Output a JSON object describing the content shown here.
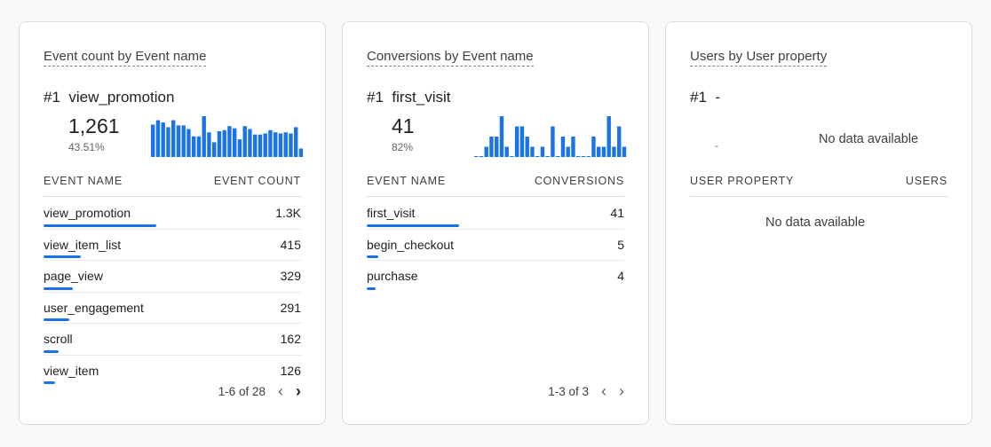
{
  "cards": [
    {
      "title": "Event count by Event name",
      "rank": "#1",
      "top_name": "view_promotion",
      "top_value": "1,261",
      "top_pct": "43.51%",
      "sparkline": [
        88,
        100,
        94,
        81,
        100,
        86,
        86,
        76,
        56,
        56,
        111,
        67,
        40,
        70,
        73,
        84,
        78,
        48,
        84,
        76,
        61,
        61,
        64,
        73,
        67,
        64,
        67,
        64,
        81,
        23
      ],
      "col_name": "EVENT NAME",
      "col_value": "EVENT COUNT",
      "rows": [
        {
          "name": "view_promotion",
          "value": "1.3K",
          "frac": 1.0
        },
        {
          "name": "view_item_list",
          "value": "415",
          "frac": 0.33
        },
        {
          "name": "page_view",
          "value": "329",
          "frac": 0.26
        },
        {
          "name": "user_engagement",
          "value": "291",
          "frac": 0.23
        },
        {
          "name": "scroll",
          "value": "162",
          "frac": 0.13
        },
        {
          "name": "view_item",
          "value": "126",
          "frac": 0.1
        }
      ],
      "pager": "1-6 of 28",
      "prev_enabled": false,
      "next_enabled": true
    },
    {
      "title": "Conversions by Event name",
      "rank": "#1",
      "top_name": "first_visit",
      "top_value": "41",
      "top_pct": "82%",
      "sparkline": [
        0,
        0,
        1,
        2,
        2,
        4,
        1,
        0,
        3,
        3,
        2,
        1,
        0,
        1,
        0,
        3,
        0,
        2,
        1,
        2,
        0,
        0,
        0,
        2,
        1,
        1,
        4,
        1,
        3,
        1
      ],
      "col_name": "EVENT NAME",
      "col_value": "CONVERSIONS",
      "rows": [
        {
          "name": "first_visit",
          "value": "41",
          "frac": 0.82
        },
        {
          "name": "begin_checkout",
          "value": "5",
          "frac": 0.1
        },
        {
          "name": "purchase",
          "value": "4",
          "frac": 0.08
        }
      ],
      "pager": "1-3 of 3",
      "prev_enabled": false,
      "next_enabled": false
    },
    {
      "title": "Users by User property",
      "rank": "#1",
      "top_name": "-",
      "top_pct": "-",
      "no_data_chart": "No data available",
      "col_name": "USER PROPERTY",
      "col_value": "USERS",
      "no_data_table": "No data available"
    }
  ],
  "accent": "#1a73e8"
}
